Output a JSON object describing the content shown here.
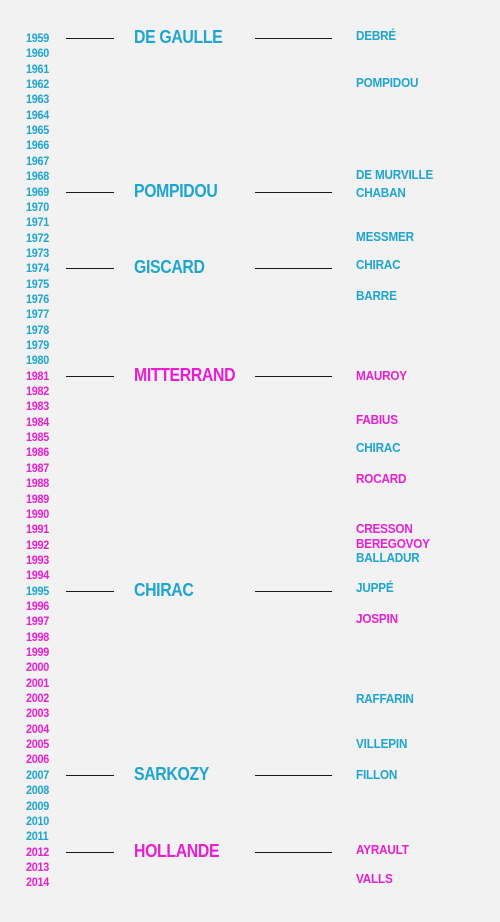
{
  "colors": {
    "right": "#1ea5d0",
    "left": "#e81ed3",
    "background": "#f2f2f2",
    "connector": "#1a1a1a"
  },
  "years": [
    {
      "label": "1959",
      "color": "right"
    },
    {
      "label": "1960",
      "color": "right"
    },
    {
      "label": "1961",
      "color": "right"
    },
    {
      "label": "1962",
      "color": "right"
    },
    {
      "label": "1963",
      "color": "right"
    },
    {
      "label": "1964",
      "color": "right"
    },
    {
      "label": "1965",
      "color": "right"
    },
    {
      "label": "1966",
      "color": "right"
    },
    {
      "label": "1967",
      "color": "right"
    },
    {
      "label": "1968",
      "color": "right"
    },
    {
      "label": "1969",
      "color": "right"
    },
    {
      "label": "1970",
      "color": "right"
    },
    {
      "label": "1971",
      "color": "right"
    },
    {
      "label": "1972",
      "color": "right"
    },
    {
      "label": "1973",
      "color": "right"
    },
    {
      "label": "1974",
      "color": "right"
    },
    {
      "label": "1975",
      "color": "right"
    },
    {
      "label": "1976",
      "color": "right"
    },
    {
      "label": "1977",
      "color": "right"
    },
    {
      "label": "1978",
      "color": "right"
    },
    {
      "label": "1979",
      "color": "right"
    },
    {
      "label": "1980",
      "color": "right"
    },
    {
      "label": "1981",
      "color": "left"
    },
    {
      "label": "1982",
      "color": "left"
    },
    {
      "label": "1983",
      "color": "left"
    },
    {
      "label": "1984",
      "color": "left"
    },
    {
      "label": "1985",
      "color": "left"
    },
    {
      "label": "1986",
      "color": "left"
    },
    {
      "label": "1987",
      "color": "left"
    },
    {
      "label": "1988",
      "color": "left"
    },
    {
      "label": "1989",
      "color": "left"
    },
    {
      "label": "1990",
      "color": "left"
    },
    {
      "label": "1991",
      "color": "left"
    },
    {
      "label": "1992",
      "color": "left"
    },
    {
      "label": "1993",
      "color": "left"
    },
    {
      "label": "1994",
      "color": "left"
    },
    {
      "label": "1995",
      "color": "right"
    },
    {
      "label": "1996",
      "color": "left"
    },
    {
      "label": "1997",
      "color": "left"
    },
    {
      "label": "1998",
      "color": "left"
    },
    {
      "label": "1999",
      "color": "left"
    },
    {
      "label": "2000",
      "color": "left"
    },
    {
      "label": "2001",
      "color": "left"
    },
    {
      "label": "2002",
      "color": "left"
    },
    {
      "label": "2003",
      "color": "left"
    },
    {
      "label": "2004",
      "color": "left"
    },
    {
      "label": "2005",
      "color": "left"
    },
    {
      "label": "2006",
      "color": "left"
    },
    {
      "label": "2007",
      "color": "right"
    },
    {
      "label": "2008",
      "color": "right"
    },
    {
      "label": "2009",
      "color": "right"
    },
    {
      "label": "2010",
      "color": "right"
    },
    {
      "label": "2011",
      "color": "right"
    },
    {
      "label": "2012",
      "color": "left"
    },
    {
      "label": "2013",
      "color": "left"
    },
    {
      "label": "2014",
      "color": "left"
    }
  ],
  "presidents": [
    {
      "name": "DE GAULLE",
      "year": "1959",
      "color": "right"
    },
    {
      "name": "POMPIDOU",
      "year": "1969",
      "color": "right"
    },
    {
      "name": "GISCARD",
      "year": "1974",
      "color": "right"
    },
    {
      "name": "MITTERRAND",
      "year": "1981",
      "color": "left"
    },
    {
      "name": "CHIRAC",
      "year": "1995",
      "color": "right"
    },
    {
      "name": "SARKOZY",
      "year": "2007",
      "color": "right"
    },
    {
      "name": "HOLLANDE",
      "year": "2012",
      "color": "left"
    }
  ],
  "prime_ministers": [
    {
      "name": "DEBRÉ",
      "year": "1959",
      "color": "right"
    },
    {
      "name": "POMPIDOU",
      "year": "1962",
      "color": "right"
    },
    {
      "name": "DE MURVILLE",
      "year": "1968",
      "color": "right"
    },
    {
      "name": "CHABAN",
      "year": "1969",
      "color": "right"
    },
    {
      "name": "MESSMER",
      "year": "1972",
      "color": "right"
    },
    {
      "name": "CHIRAC",
      "year": "1974",
      "color": "right"
    },
    {
      "name": "BARRE",
      "year": "1976",
      "color": "right"
    },
    {
      "name": "MAUROY",
      "year": "1981",
      "color": "left"
    },
    {
      "name": "FABIUS",
      "year": "1984",
      "color": "left"
    },
    {
      "name": "CHIRAC",
      "year": "1986",
      "color": "right"
    },
    {
      "name": "ROCARD",
      "year": "1988",
      "color": "left"
    },
    {
      "name": "CRESSON",
      "year": "1991",
      "color": "left"
    },
    {
      "name": "BEREGOVOY",
      "year": "1992",
      "color": "left"
    },
    {
      "name": "BALLADUR",
      "year": "1993",
      "color": "right"
    },
    {
      "name": "JUPPÉ",
      "year": "1995",
      "color": "right"
    },
    {
      "name": "JOSPIN",
      "year": "1997",
      "color": "left"
    },
    {
      "name": "RAFFARIN",
      "year": "2002",
      "color": "right"
    },
    {
      "name": "VILLEPIN",
      "year": "2005",
      "color": "right"
    },
    {
      "name": "FILLON",
      "year": "2007",
      "color": "right"
    },
    {
      "name": "AYRAULT",
      "year": "2012",
      "color": "left"
    },
    {
      "name": "VALLS",
      "year": "2014",
      "color": "left"
    }
  ]
}
